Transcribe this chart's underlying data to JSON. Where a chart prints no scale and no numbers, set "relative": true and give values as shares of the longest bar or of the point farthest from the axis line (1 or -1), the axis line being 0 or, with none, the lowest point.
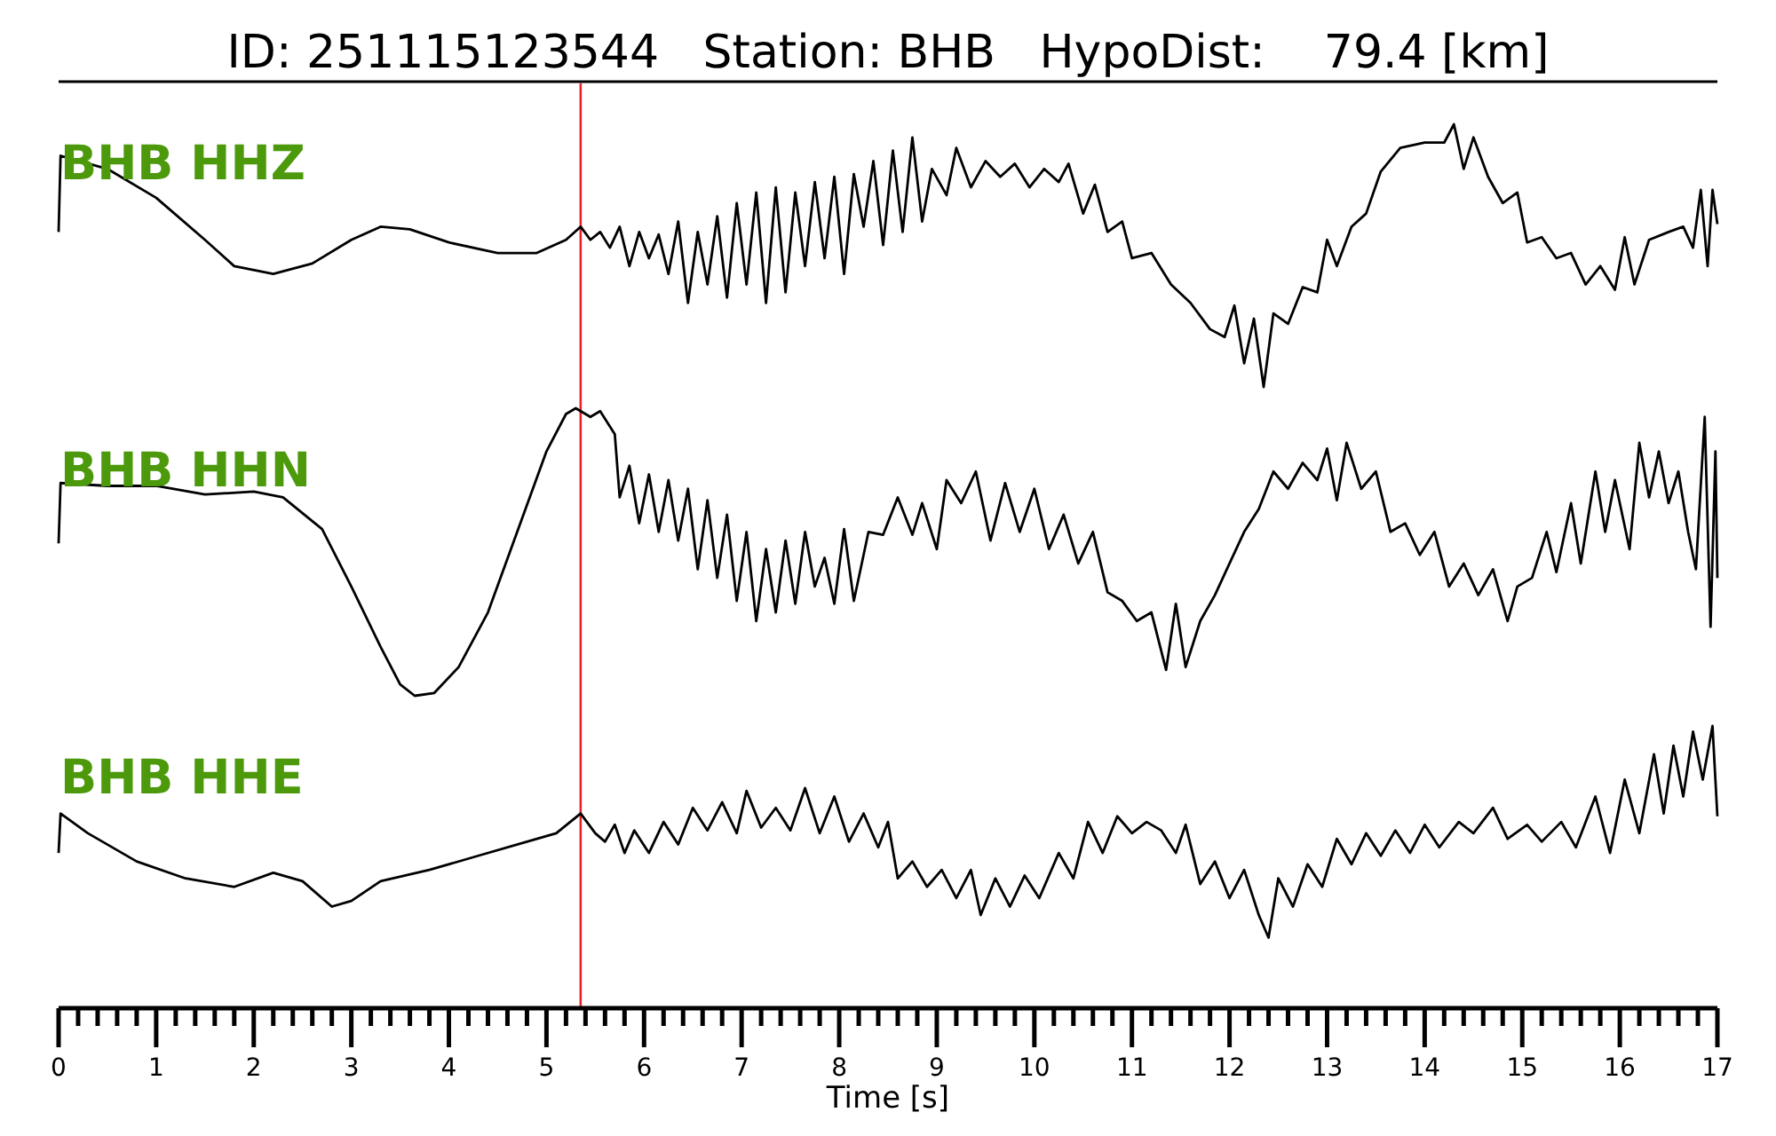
{
  "chart_data": [
    {
      "type": "line",
      "title": "ID: 251115123544   Station: BHB   HypoDist:    79.4 [km]",
      "relative": true,
      "xlim": [
        0,
        17
      ],
      "tick_labels": false,
      "ref_lines": [
        {
          "axis": "x",
          "value": 5.35,
          "color": "#e3242b"
        }
      ],
      "x": [
        0,
        0.02,
        0.5,
        1.0,
        1.5,
        1.8,
        2.2,
        2.6,
        3.0,
        3.3,
        3.6,
        4.0,
        4.5,
        4.9,
        5.2,
        5.35,
        5.45,
        5.55,
        5.65,
        5.75,
        5.85,
        5.95,
        6.05,
        6.15,
        6.25,
        6.35,
        6.45,
        6.55,
        6.65,
        6.75,
        6.85,
        6.95,
        7.05,
        7.15,
        7.25,
        7.35,
        7.45,
        7.55,
        7.65,
        7.75,
        7.85,
        7.95,
        8.05,
        8.15,
        8.25,
        8.35,
        8.45,
        8.55,
        8.65,
        8.75,
        8.85,
        8.95,
        9.1,
        9.2,
        9.35,
        9.5,
        9.65,
        9.8,
        9.95,
        10.1,
        10.25,
        10.35,
        10.5,
        10.62,
        10.75,
        10.9,
        11.0,
        11.2,
        11.4,
        11.6,
        11.8,
        11.95,
        12.05,
        12.15,
        12.25,
        12.35,
        12.45,
        12.6,
        12.75,
        12.9,
        13.0,
        13.1,
        13.25,
        13.4,
        13.55,
        13.75,
        14.0,
        14.2,
        14.3,
        14.4,
        14.5,
        14.65,
        14.8,
        14.95,
        15.05,
        15.2,
        15.35,
        15.5,
        15.65,
        15.8,
        15.95,
        16.05,
        16.15,
        16.3,
        16.5,
        16.65,
        16.75,
        16.83,
        16.9,
        16.95,
        17.0
      ],
      "series": [
        {
          "name": "BHB HHZ",
          "color": "#000000",
          "values": [
            0.59,
            0.88,
            0.83,
            0.72,
            0.56,
            0.46,
            0.43,
            0.47,
            0.56,
            0.61,
            0.6,
            0.55,
            0.51,
            0.51,
            0.56,
            0.61,
            0.56,
            0.59,
            0.53,
            0.61,
            0.46,
            0.59,
            0.49,
            0.58,
            0.43,
            0.63,
            0.32,
            0.59,
            0.39,
            0.65,
            0.34,
            0.7,
            0.39,
            0.74,
            0.32,
            0.76,
            0.36,
            0.74,
            0.46,
            0.78,
            0.49,
            0.8,
            0.43,
            0.81,
            0.61,
            0.86,
            0.54,
            0.9,
            0.59,
            0.95,
            0.63,
            0.83,
            0.73,
            0.91,
            0.76,
            0.86,
            0.8,
            0.85,
            0.76,
            0.83,
            0.78,
            0.85,
            0.66,
            0.77,
            0.59,
            0.63,
            0.49,
            0.51,
            0.39,
            0.32,
            0.22,
            0.19,
            0.31,
            0.09,
            0.26,
            0,
            0.28,
            0.24,
            0.38,
            0.36,
            0.56,
            0.46,
            0.61,
            0.66,
            0.82,
            0.91,
            0.93,
            0.93,
            1,
            0.83,
            0.95,
            0.8,
            0.7,
            0.74,
            0.55,
            0.57,
            0.49,
            0.51,
            0.39,
            0.46,
            0.37,
            0.57,
            0.39,
            0.56,
            0.59,
            0.61,
            0.53,
            0.75,
            0.46,
            0.75,
            0.62
          ]
        }
      ]
    },
    {
      "type": "line",
      "relative": true,
      "xlim": [
        0,
        17
      ],
      "tick_labels": false,
      "ref_lines": [
        {
          "axis": "x",
          "value": 5.35,
          "color": "#e3242b"
        }
      ],
      "x": [
        0,
        0.02,
        0.5,
        1.0,
        1.5,
        2.0,
        2.3,
        2.7,
        3.0,
        3.3,
        3.5,
        3.65,
        3.85,
        4.1,
        4.4,
        4.7,
        5.0,
        5.2,
        5.3,
        5.45,
        5.55,
        5.7,
        5.75,
        5.85,
        5.95,
        6.05,
        6.15,
        6.25,
        6.35,
        6.45,
        6.55,
        6.65,
        6.75,
        6.85,
        6.95,
        7.05,
        7.15,
        7.25,
        7.35,
        7.45,
        7.55,
        7.65,
        7.75,
        7.85,
        7.95,
        8.05,
        8.15,
        8.3,
        8.45,
        8.6,
        8.75,
        8.85,
        9.0,
        9.1,
        9.25,
        9.4,
        9.55,
        9.7,
        9.85,
        10.0,
        10.15,
        10.3,
        10.45,
        10.6,
        10.75,
        10.9,
        11.05,
        11.2,
        11.35,
        11.45,
        11.55,
        11.7,
        11.85,
        12.0,
        12.15,
        12.3,
        12.45,
        12.6,
        12.75,
        12.9,
        13.0,
        13.1,
        13.2,
        13.35,
        13.5,
        13.65,
        13.8,
        13.95,
        14.1,
        14.25,
        14.4,
        14.55,
        14.7,
        14.85,
        14.95,
        15.1,
        15.25,
        15.35,
        15.5,
        15.6,
        15.75,
        15.85,
        15.95,
        16.1,
        16.2,
        16.3,
        16.4,
        16.5,
        16.6,
        16.7,
        16.78,
        16.87,
        16.93,
        16.98,
        17.0
      ],
      "series": [
        {
          "name": "BHB HHN",
          "color": "#000000",
          "values": [
            0.53,
            0.74,
            0.73,
            0.73,
            0.7,
            0.71,
            0.69,
            0.58,
            0.38,
            0.17,
            0.04,
            0,
            0.01,
            0.1,
            0.29,
            0.57,
            0.85,
            0.98,
            1,
            0.97,
            0.99,
            0.91,
            0.69,
            0.8,
            0.6,
            0.77,
            0.57,
            0.75,
            0.54,
            0.72,
            0.44,
            0.68,
            0.41,
            0.63,
            0.33,
            0.57,
            0.26,
            0.51,
            0.29,
            0.54,
            0.32,
            0.57,
            0.38,
            0.48,
            0.32,
            0.58,
            0.33,
            0.57,
            0.56,
            0.69,
            0.56,
            0.67,
            0.51,
            0.75,
            0.67,
            0.78,
            0.54,
            0.74,
            0.57,
            0.72,
            0.51,
            0.63,
            0.46,
            0.57,
            0.36,
            0.33,
            0.26,
            0.29,
            0.09,
            0.32,
            0.1,
            0.26,
            0.35,
            0.46,
            0.57,
            0.65,
            0.78,
            0.72,
            0.81,
            0.75,
            0.86,
            0.68,
            0.88,
            0.72,
            0.78,
            0.57,
            0.6,
            0.49,
            0.57,
            0.38,
            0.46,
            0.35,
            0.44,
            0.26,
            0.38,
            0.41,
            0.57,
            0.43,
            0.67,
            0.46,
            0.78,
            0.57,
            0.75,
            0.51,
            0.88,
            0.69,
            0.85,
            0.67,
            0.78,
            0.57,
            0.44,
            0.97,
            0.24,
            0.85,
            0.41
          ]
        }
      ]
    },
    {
      "type": "line",
      "relative": true,
      "xlim": [
        0,
        17
      ],
      "tick_labels": "x",
      "xlabel": "Time [s]",
      "ref_lines": [
        {
          "axis": "x",
          "value": 5.35,
          "color": "#e3242b"
        }
      ],
      "xticks": [
        0,
        {
          "value": 0.2,
          "label": null
        },
        {
          "value": 0.4,
          "label": null
        },
        {
          "value": 0.6,
          "label": null
        },
        {
          "value": 0.8,
          "label": null
        },
        1,
        {
          "value": 1.2,
          "label": null
        },
        {
          "value": 1.4,
          "label": null
        },
        {
          "value": 1.6,
          "label": null
        },
        {
          "value": 1.8,
          "label": null
        },
        2,
        {
          "value": 2.2,
          "label": null
        },
        {
          "value": 2.4,
          "label": null
        },
        {
          "value": 2.6,
          "label": null
        },
        {
          "value": 2.8,
          "label": null
        },
        3,
        {
          "value": 3.2,
          "label": null
        },
        {
          "value": 3.4,
          "label": null
        },
        {
          "value": 3.6,
          "label": null
        },
        {
          "value": 3.8,
          "label": null
        },
        4,
        {
          "value": 4.2,
          "label": null
        },
        {
          "value": 4.4,
          "label": null
        },
        {
          "value": 4.6,
          "label": null
        },
        {
          "value": 4.8,
          "label": null
        },
        5,
        {
          "value": 5.2,
          "label": null
        },
        {
          "value": 5.4,
          "label": null
        },
        {
          "value": 5.6,
          "label": null
        },
        {
          "value": 5.8,
          "label": null
        },
        6,
        {
          "value": 6.2,
          "label": null
        },
        {
          "value": 6.4,
          "label": null
        },
        {
          "value": 6.6,
          "label": null
        },
        {
          "value": 6.8,
          "label": null
        },
        7,
        {
          "value": 7.2,
          "label": null
        },
        {
          "value": 7.4,
          "label": null
        },
        {
          "value": 7.6,
          "label": null
        },
        {
          "value": 7.8,
          "label": null
        },
        8,
        {
          "value": 8.2,
          "label": null
        },
        {
          "value": 8.4,
          "label": null
        },
        {
          "value": 8.6,
          "label": null
        },
        {
          "value": 8.8,
          "label": null
        },
        9,
        {
          "value": 9.2,
          "label": null
        },
        {
          "value": 9.4,
          "label": null
        },
        {
          "value": 9.6,
          "label": null
        },
        {
          "value": 9.8,
          "label": null
        },
        10,
        {
          "value": 10.2,
          "label": null
        },
        {
          "value": 10.4,
          "label": null
        },
        {
          "value": 10.6,
          "label": null
        },
        {
          "value": 10.8,
          "label": null
        },
        11,
        {
          "value": 11.2,
          "label": null
        },
        {
          "value": 11.4,
          "label": null
        },
        {
          "value": 11.6,
          "label": null
        },
        {
          "value": 11.8,
          "label": null
        },
        12,
        {
          "value": 12.2,
          "label": null
        },
        {
          "value": 12.4,
          "label": null
        },
        {
          "value": 12.6,
          "label": null
        },
        {
          "value": 12.8,
          "label": null
        },
        13,
        {
          "value": 13.2,
          "label": null
        },
        {
          "value": 13.4,
          "label": null
        },
        {
          "value": 13.6,
          "label": null
        },
        {
          "value": 13.8,
          "label": null
        },
        14,
        {
          "value": 14.2,
          "label": null
        },
        {
          "value": 14.4,
          "label": null
        },
        {
          "value": 14.6,
          "label": null
        },
        {
          "value": 14.8,
          "label": null
        },
        15,
        {
          "value": 15.2,
          "label": null
        },
        {
          "value": 15.4,
          "label": null
        },
        {
          "value": 15.6,
          "label": null
        },
        {
          "value": 15.8,
          "label": null
        },
        16,
        {
          "value": 16.2,
          "label": null
        },
        {
          "value": 16.4,
          "label": null
        },
        {
          "value": 16.6,
          "label": null
        },
        {
          "value": 16.8,
          "label": null
        },
        17
      ],
      "x": [
        0,
        0.02,
        0.3,
        0.8,
        1.3,
        1.8,
        2.2,
        2.5,
        2.8,
        3.0,
        3.3,
        3.8,
        4.3,
        4.8,
        5.1,
        5.35,
        5.5,
        5.6,
        5.7,
        5.8,
        5.9,
        6.05,
        6.2,
        6.35,
        6.5,
        6.65,
        6.8,
        6.95,
        7.05,
        7.2,
        7.35,
        7.5,
        7.65,
        7.8,
        7.95,
        8.1,
        8.25,
        8.4,
        8.5,
        8.6,
        8.75,
        8.9,
        9.05,
        9.2,
        9.35,
        9.45,
        9.6,
        9.75,
        9.9,
        10.05,
        10.25,
        10.4,
        10.55,
        10.7,
        10.85,
        11.0,
        11.15,
        11.3,
        11.45,
        11.55,
        11.7,
        11.85,
        12.0,
        12.15,
        12.3,
        12.4,
        12.5,
        12.65,
        12.8,
        12.95,
        13.1,
        13.25,
        13.4,
        13.55,
        13.7,
        13.85,
        14.0,
        14.15,
        14.35,
        14.5,
        14.7,
        14.85,
        15.05,
        15.2,
        15.4,
        15.55,
        15.75,
        15.9,
        16.05,
        16.2,
        16.35,
        16.45,
        16.55,
        16.65,
        16.75,
        16.85,
        16.95,
        17.0
      ],
      "series": [
        {
          "name": "BHB HHE",
          "color": "#000000",
          "values": [
            0.55,
            0.69,
            0.62,
            0.52,
            0.46,
            0.43,
            0.48,
            0.45,
            0.36,
            0.38,
            0.45,
            0.49,
            0.54,
            0.59,
            0.62,
            0.69,
            0.62,
            0.59,
            0.65,
            0.55,
            0.63,
            0.55,
            0.66,
            0.58,
            0.71,
            0.63,
            0.73,
            0.62,
            0.77,
            0.64,
            0.71,
            0.63,
            0.78,
            0.62,
            0.75,
            0.59,
            0.69,
            0.57,
            0.66,
            0.46,
            0.52,
            0.43,
            0.49,
            0.39,
            0.49,
            0.33,
            0.46,
            0.36,
            0.47,
            0.39,
            0.55,
            0.46,
            0.66,
            0.55,
            0.68,
            0.62,
            0.66,
            0.63,
            0.55,
            0.65,
            0.44,
            0.52,
            0.39,
            0.49,
            0.33,
            0.25,
            0.46,
            0.36,
            0.51,
            0.43,
            0.6,
            0.51,
            0.62,
            0.54,
            0.63,
            0.55,
            0.65,
            0.57,
            0.66,
            0.62,
            0.71,
            0.6,
            0.65,
            0.59,
            0.66,
            0.57,
            0.75,
            0.55,
            0.81,
            0.62,
            0.9,
            0.69,
            0.93,
            0.75,
            0.98,
            0.81,
            1,
            0.68
          ]
        }
      ]
    }
  ]
}
